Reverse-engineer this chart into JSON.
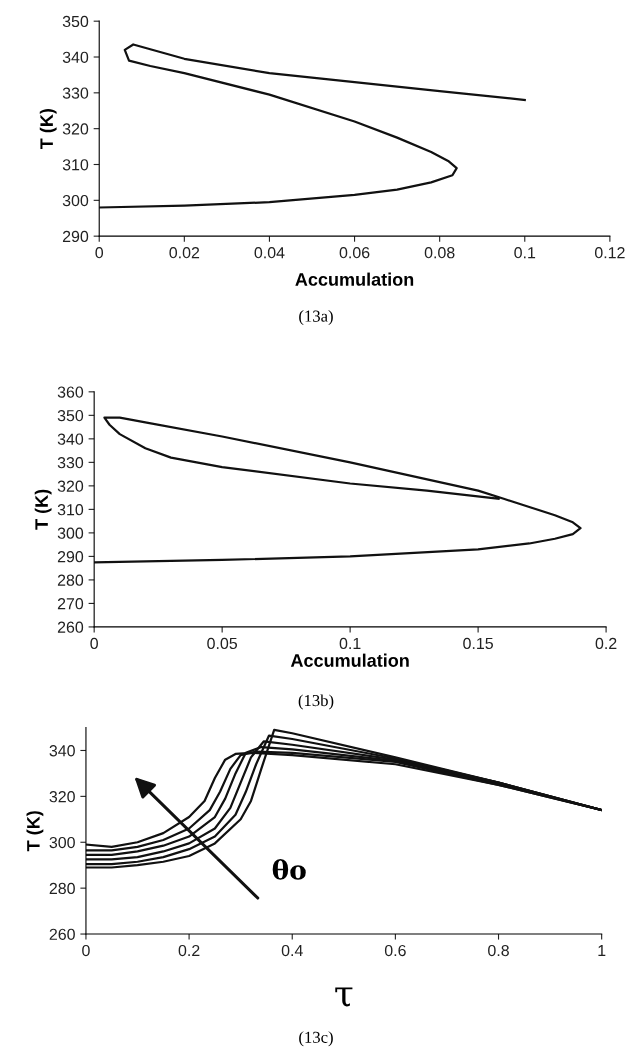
{
  "chart_data": [
    {
      "type": "line",
      "xlabel": "Accumulation",
      "ylabel": "T (K)",
      "xlim": [
        0,
        0.12
      ],
      "ylim": [
        290,
        350
      ],
      "xticks": [
        0,
        0.02,
        0.04,
        0.06,
        0.08,
        0.1,
        0.12
      ],
      "yticks": [
        290,
        300,
        310,
        320,
        330,
        340,
        350
      ],
      "annotations": [
        "(13a)"
      ],
      "series": [
        {
          "color": "#111111",
          "x": [
            0,
            0.02,
            0.04,
            0.06,
            0.07,
            0.078,
            0.083,
            0.084,
            0.082,
            0.078,
            0.07,
            0.06,
            0.04,
            0.02,
            0.012,
            0.007,
            0.006,
            0.008,
            0.02,
            0.04,
            0.06,
            0.08,
            0.1
          ],
          "values": [
            298,
            298.5,
            299.5,
            301.5,
            303,
            305,
            307,
            309,
            311,
            313.5,
            317.5,
            322,
            329.5,
            335.5,
            337.5,
            339,
            342,
            343.5,
            339.5,
            335.5,
            333,
            330.5,
            328
          ]
        }
      ]
    },
    {
      "type": "line",
      "xlabel": "Accumulation",
      "ylabel": "T (K)",
      "xlim": [
        0,
        0.2
      ],
      "ylim": [
        260,
        360
      ],
      "xticks": [
        0,
        0.05,
        0.1,
        0.15,
        0.2
      ],
      "yticks": [
        260,
        270,
        280,
        290,
        300,
        310,
        320,
        330,
        340,
        350,
        360
      ],
      "annotations": [
        "(13b)"
      ],
      "series": [
        {
          "color": "#111111",
          "x": [
            0,
            0.05,
            0.1,
            0.15,
            0.17,
            0.18,
            0.187,
            0.19,
            0.187,
            0.18,
            0.17,
            0.16,
            0.15,
            0.1,
            0.05,
            0.02,
            0.01,
            0.004,
            0.006,
            0.01,
            0.02,
            0.03,
            0.05,
            0.1,
            0.13,
            0.158
          ],
          "values": [
            287.5,
            288.5,
            290,
            293,
            295.5,
            297.5,
            299.5,
            302,
            304.5,
            307.5,
            311,
            314.5,
            318,
            330,
            341,
            347,
            349,
            349,
            346,
            342,
            336,
            332,
            328,
            321,
            318,
            314.5
          ]
        }
      ]
    },
    {
      "type": "line",
      "xlabel": "τ",
      "ylabel": "T (K)",
      "xlim": [
        0,
        1
      ],
      "ylim": [
        260,
        350
      ],
      "xticks": [
        0,
        0.2,
        0.4,
        0.6,
        0.8,
        1
      ],
      "yticks": [
        260,
        280,
        300,
        320,
        340
      ],
      "annotations": [
        "θo",
        "(13c)"
      ],
      "series": [
        {
          "color": "#111111",
          "x": [
            0,
            0.05,
            0.1,
            0.15,
            0.2,
            0.23,
            0.25,
            0.27,
            0.29,
            0.32,
            0.4,
            0.6,
            0.8,
            1
          ],
          "values": [
            299,
            298,
            300,
            304,
            311,
            318,
            328,
            336,
            338.5,
            339,
            338,
            334,
            325,
            314
          ]
        },
        {
          "color": "#111111",
          "x": [
            0,
            0.05,
            0.1,
            0.15,
            0.2,
            0.24,
            0.26,
            0.28,
            0.3,
            0.33,
            0.4,
            0.6,
            0.8,
            1
          ],
          "values": [
            296.5,
            296.5,
            298,
            301,
            306,
            314,
            322,
            332,
            338,
            339.5,
            339,
            335,
            325,
            314
          ]
        },
        {
          "color": "#111111",
          "x": [
            0,
            0.05,
            0.1,
            0.15,
            0.2,
            0.25,
            0.27,
            0.29,
            0.31,
            0.34,
            0.4,
            0.6,
            0.8,
            1
          ],
          "values": [
            294.5,
            294.5,
            296,
            298.5,
            302.5,
            311,
            319,
            330,
            339,
            341.5,
            340.5,
            335.5,
            325.5,
            314
          ]
        },
        {
          "color": "#111111",
          "x": [
            0,
            0.05,
            0.1,
            0.15,
            0.2,
            0.25,
            0.28,
            0.3,
            0.32,
            0.345,
            0.4,
            0.6,
            0.8,
            1
          ],
          "values": [
            292.5,
            292.5,
            293.5,
            296,
            299.5,
            306,
            315,
            326,
            337,
            344,
            342.5,
            336,
            326,
            314
          ]
        },
        {
          "color": "#111111",
          "x": [
            0,
            0.05,
            0.1,
            0.15,
            0.2,
            0.25,
            0.29,
            0.31,
            0.33,
            0.355,
            0.4,
            0.6,
            0.8,
            1
          ],
          "values": [
            290.5,
            290.5,
            291.5,
            293.5,
            297,
            302.5,
            312,
            322,
            334,
            346.5,
            345,
            336.5,
            326,
            314
          ]
        },
        {
          "color": "#111111",
          "x": [
            0,
            0.05,
            0.1,
            0.15,
            0.2,
            0.25,
            0.3,
            0.32,
            0.34,
            0.365,
            0.4,
            0.6,
            0.8,
            1
          ],
          "values": [
            289,
            289,
            290,
            291.5,
            294,
            299.5,
            310,
            318,
            332,
            349,
            347.5,
            337,
            326,
            314
          ]
        }
      ]
    }
  ]
}
